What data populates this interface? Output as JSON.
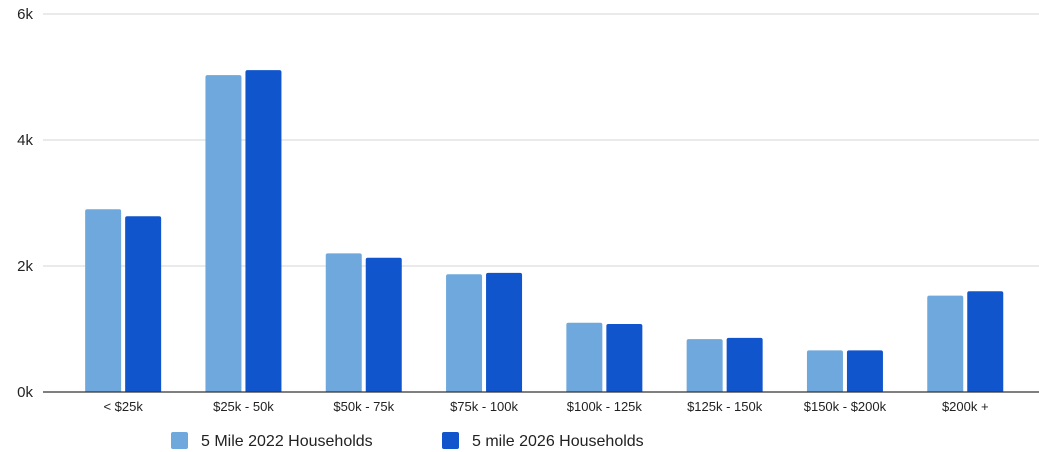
{
  "chart_data": {
    "type": "bar",
    "categories": [
      "< $25k",
      "$25k - 50k",
      "$50k - 75k",
      "$75k - 100k",
      "$100k - 125k",
      "$125k - 150k",
      "$150k - $200k",
      "$200k  +"
    ],
    "series": [
      {
        "name": "5 Mile 2022 Households",
        "color": "#6fa8dc",
        "values": [
          2900,
          5030,
          2200,
          1870,
          1100,
          840,
          660,
          1530
        ]
      },
      {
        "name": "5 mile 2026 Households",
        "color": "#1155cc",
        "values": [
          2790,
          5110,
          2130,
          1890,
          1080,
          860,
          660,
          1600
        ]
      }
    ],
    "y_ticks": [
      {
        "value": 0,
        "label": "0k"
      },
      {
        "value": 2000,
        "label": "2k"
      },
      {
        "value": 4000,
        "label": "4k"
      },
      {
        "value": 6000,
        "label": "6k"
      }
    ],
    "ylim": [
      0,
      6000
    ],
    "grid": true,
    "legend": "bottom-center"
  }
}
